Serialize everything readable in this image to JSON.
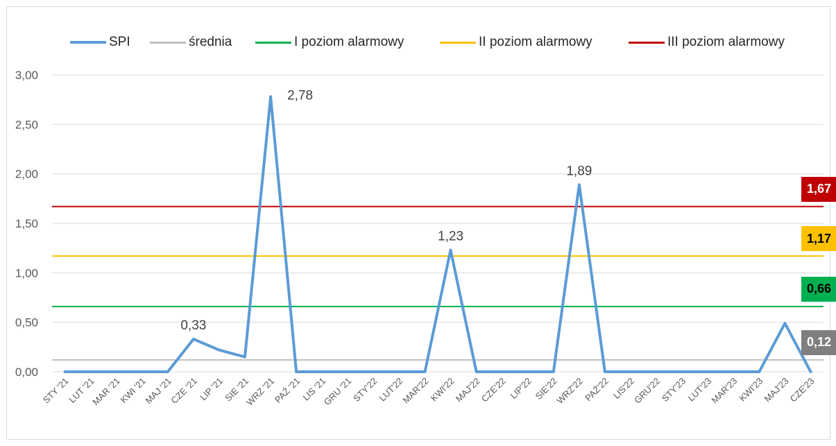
{
  "chart_data": {
    "type": "line",
    "title": "",
    "xlabel": "",
    "ylabel": "",
    "ylim": [
      0,
      3
    ],
    "y_ticks": [
      "0,00",
      "0,50",
      "1,00",
      "1,50",
      "2,00",
      "2,50",
      "3,00"
    ],
    "y_tick_values": [
      0,
      0.5,
      1,
      1.5,
      2,
      2.5,
      3
    ],
    "grid": "horizontal",
    "legend_position": "top",
    "categories": [
      "STY '21",
      "LUT '21",
      "MAR '21",
      "KWI '21",
      "MAJ '21",
      "CZE '21",
      "LIP '21",
      "SIE '21",
      "WRZ '21",
      "PAŹ '21",
      "LIS '21",
      "GRU '21",
      "STY'22",
      "LUT'22",
      "MAR'22",
      "KWI'22",
      "MAJ'22",
      "CZE'22",
      "LIP'22",
      "SIE'22",
      "WRZ'22",
      "PAŹ'22",
      "LIS'22",
      "GRU'22",
      "STY'23",
      "LUT'23",
      "MAR'23",
      "KWI'23",
      "MAJ'23",
      "CZE'23"
    ],
    "series": [
      {
        "name": "SPI",
        "color": "#5b9bd5",
        "values": [
          0,
          0,
          0,
          0,
          0,
          0.33,
          0.22,
          0.15,
          2.78,
          0,
          0,
          0,
          0,
          0,
          0,
          1.23,
          0,
          0,
          0,
          0,
          1.89,
          0,
          0,
          0,
          0,
          0,
          0,
          0,
          0.49,
          0
        ]
      },
      {
        "name": "średnia",
        "color": "#bfbfbf",
        "value": 0.12
      },
      {
        "name": "I poziom alarmowy",
        "color": "#00b050",
        "value": 0.66
      },
      {
        "name": "II poziom alarmowy",
        "color": "#ffc000",
        "value": 1.17
      },
      {
        "name": "III poziom alarmowy",
        "color": "#c00000",
        "value": 1.67
      }
    ],
    "data_labels": [
      {
        "index": 5,
        "text": "0,33"
      },
      {
        "index": 8,
        "text": "2,78"
      },
      {
        "index": 15,
        "text": "1,23"
      },
      {
        "index": 20,
        "text": "1,89"
      }
    ],
    "badges": [
      {
        "text": "1,67",
        "value": 1.67,
        "bg": "#c00000",
        "fg": "#ffffff"
      },
      {
        "text": "1,17",
        "value": 1.17,
        "bg": "#ffc000",
        "fg": "#000000"
      },
      {
        "text": "0,66",
        "value": 0.66,
        "bg": "#00b050",
        "fg": "#000000"
      },
      {
        "text": "0,12",
        "value": 0.12,
        "bg": "#7f7f7f",
        "fg": "#ffffff"
      }
    ]
  }
}
